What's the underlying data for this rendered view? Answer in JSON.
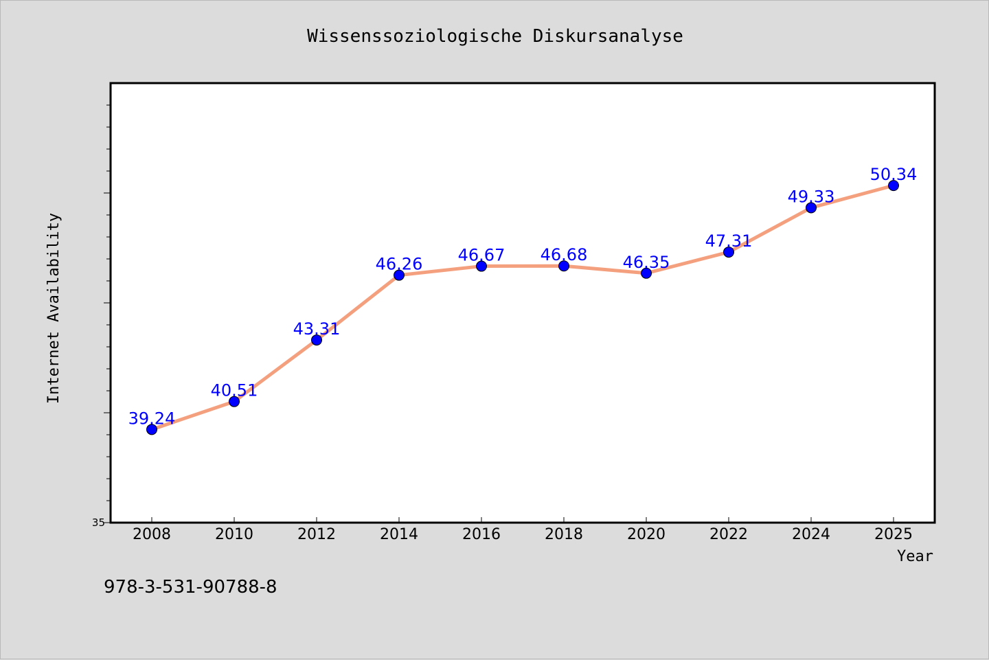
{
  "chart_data": {
    "type": "line",
    "title": "Wissenssoziologische Diskursanalyse",
    "xlabel": "Year",
    "ylabel": "Internet Availability",
    "x": [
      "2008",
      "2010",
      "2012",
      "2014",
      "2016",
      "2018",
      "2020",
      "2022",
      "2024",
      "2025"
    ],
    "series": [
      {
        "values": [
          39.24,
          40.51,
          43.31,
          46.26,
          46.67,
          46.68,
          46.35,
          47.31,
          49.33,
          50.34
        ],
        "line_color": "#f4a07f",
        "marker_color": "#0000ff",
        "label_color": "#0000ff"
      }
    ],
    "y_tick_labels": [
      "35"
    ],
    "ylim": [
      35,
      55
    ],
    "grid": false,
    "legend": "none"
  },
  "footer": {
    "isbn": "978-3-531-90788-8"
  },
  "colors": {
    "background": "#dcdcdc",
    "plot_background": "#ffffff",
    "axis": "#000000"
  }
}
